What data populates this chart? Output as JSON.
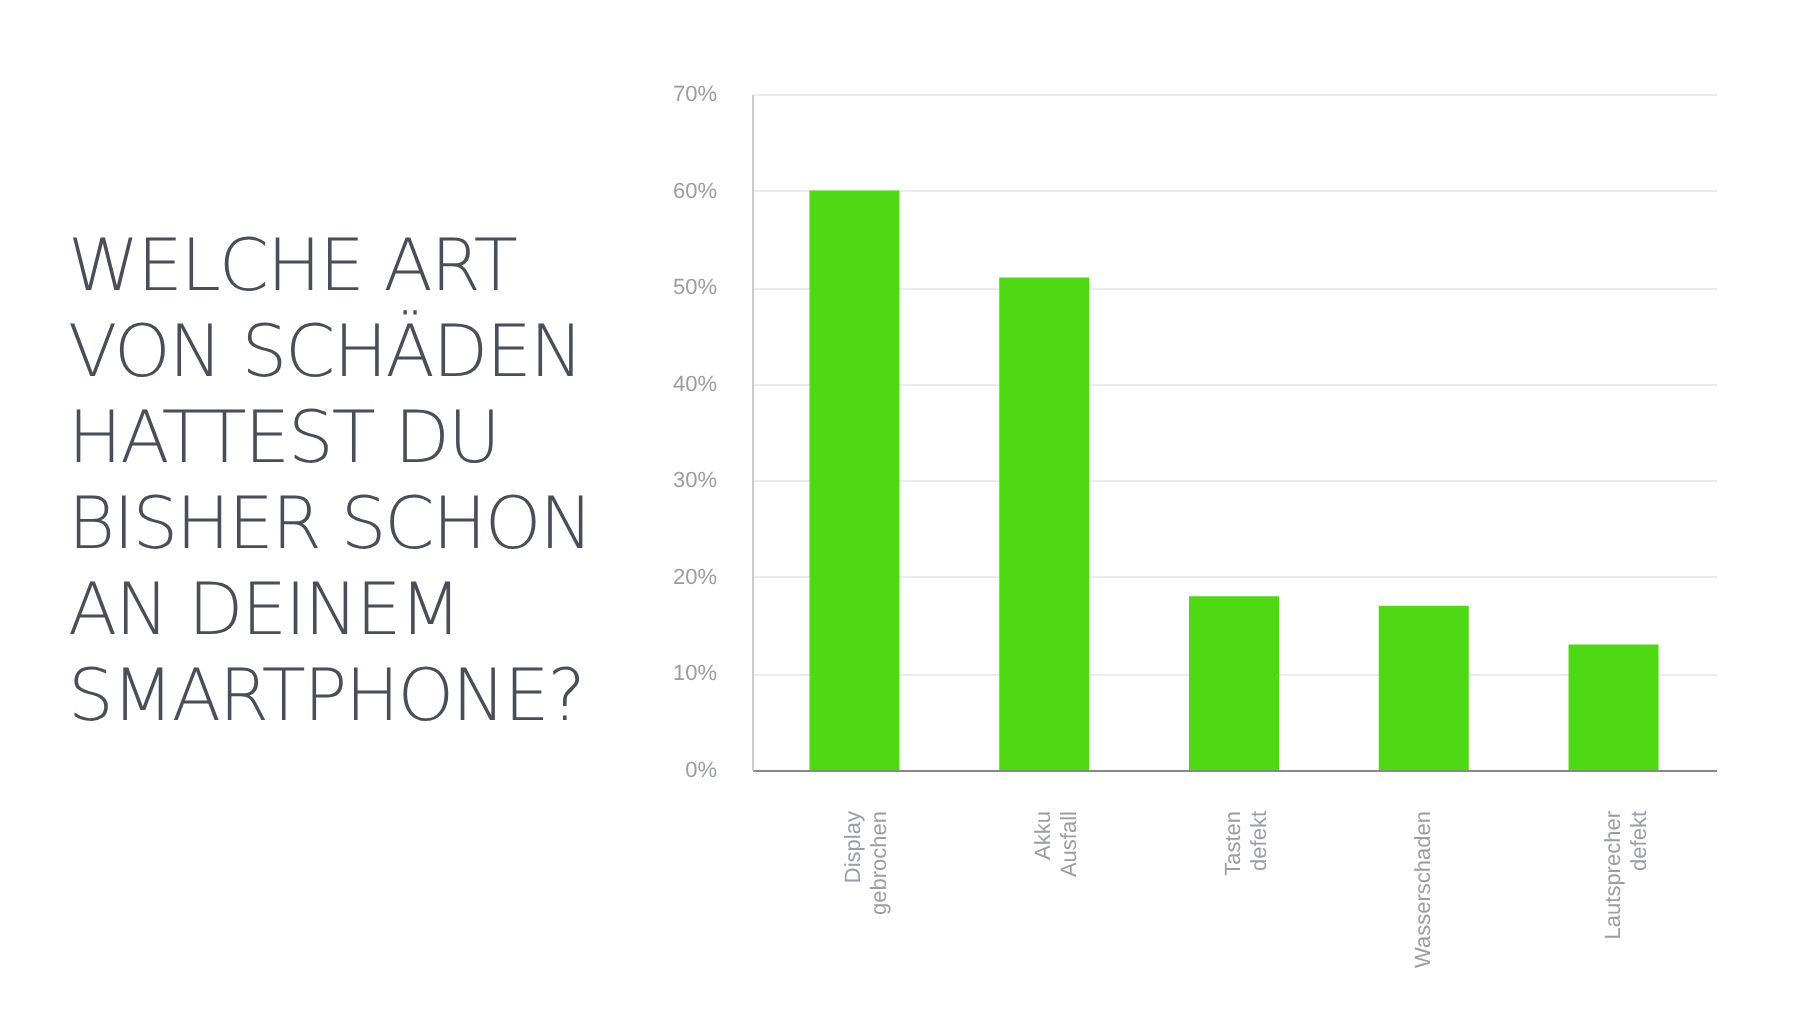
{
  "chart_data": {
    "type": "bar",
    "title": "WELCHE ART VON SCHÄDEN HATTEST DU BISHER SCHON AN DEINEM SMARTPHONE?",
    "categories": [
      "Display gebrochen",
      "Akku Ausfall",
      "Tasten defekt",
      "Wasserschaden",
      "Lautsprecher defekt"
    ],
    "values": [
      60,
      51,
      18,
      17,
      13
    ],
    "color": "#4fd814",
    "ylim": [
      0,
      70
    ],
    "yticks": [
      {
        "value": 0,
        "label": "0%"
      },
      {
        "value": 10,
        "label": "10%"
      },
      {
        "value": 20,
        "label": "20%"
      },
      {
        "value": 30,
        "label": "30%"
      },
      {
        "value": 40,
        "label": "40%"
      },
      {
        "value": 50,
        "label": "50%"
      },
      {
        "value": 60,
        "label": "60%"
      },
      {
        "value": 70,
        "label": "70%"
      }
    ],
    "grid": true
  }
}
